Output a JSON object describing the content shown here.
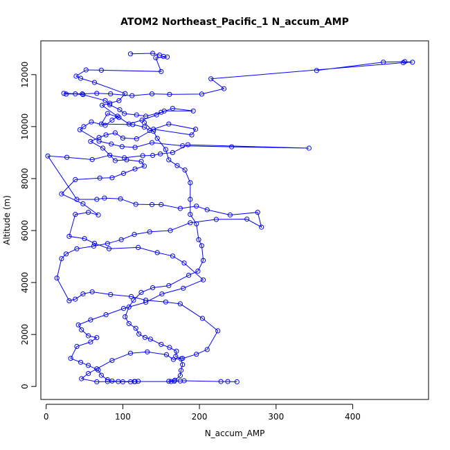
{
  "chart_data": {
    "type": "scatter",
    "title": "ATOM2 Northeast_Pacific_1 N_accum_AMP",
    "xlabel": "N_accum_AMP",
    "ylabel": "Altitude (m)",
    "xlim": [
      -7,
      499
    ],
    "ylim": [
      -500,
      13300
    ],
    "x_ticks": [
      0,
      100,
      200,
      300,
      400
    ],
    "y_ticks": [
      0,
      2000,
      4000,
      6000,
      8000,
      10000,
      12000
    ],
    "grid": false,
    "style": "points connected by lines",
    "color": "#0000ff",
    "series": [
      {
        "points": [
          [
            110,
            12800
          ],
          [
            139,
            12820
          ],
          [
            148,
            12750
          ],
          [
            153,
            12700
          ],
          [
            158,
            12680
          ],
          [
            143,
            12650
          ],
          [
            150,
            12120
          ],
          [
            72,
            12170
          ],
          [
            52,
            12180
          ],
          [
            39,
            11940
          ],
          [
            45,
            11860
          ],
          [
            63,
            11700
          ],
          [
            103,
            11270
          ],
          [
            95,
            11000
          ],
          [
            83,
            10900
          ],
          [
            73,
            10820
          ],
          [
            95,
            10350
          ],
          [
            80,
            10500
          ],
          [
            72,
            10100
          ],
          [
            113,
            10080
          ],
          [
            128,
            9980
          ],
          [
            135,
            9850
          ],
          [
            160,
            10100
          ],
          [
            195,
            9900
          ],
          [
            190,
            9680
          ],
          [
            140,
            9900
          ],
          [
            118,
            9530
          ],
          [
            100,
            9560
          ],
          [
            90,
            9760
          ],
          [
            78,
            9680
          ],
          [
            69,
            9580
          ],
          [
            58,
            9430
          ],
          [
            74,
            9170
          ],
          [
            90,
            8690
          ],
          [
            105,
            8720
          ],
          [
            124,
            8660
          ],
          [
            128,
            8480
          ],
          [
            116,
            8370
          ],
          [
            101,
            8200
          ],
          [
            86,
            8030
          ],
          [
            70,
            8020
          ],
          [
            38,
            7960
          ],
          [
            20,
            7410
          ],
          [
            48,
            7030
          ],
          [
            68,
            6600
          ],
          [
            55,
            6700
          ],
          [
            38,
            6620
          ],
          [
            30,
            5780
          ],
          [
            50,
            5690
          ],
          [
            63,
            5510
          ],
          [
            82,
            5300
          ],
          [
            120,
            5350
          ],
          [
            145,
            5150
          ],
          [
            165,
            5020
          ],
          [
            180,
            4750
          ],
          [
            205,
            4100
          ],
          [
            179,
            3780
          ],
          [
            151,
            3560
          ],
          [
            130,
            3240
          ],
          [
            101,
            3000
          ],
          [
            78,
            2760
          ],
          [
            58,
            2560
          ],
          [
            42,
            2370
          ],
          [
            46,
            2180
          ],
          [
            55,
            1950
          ],
          [
            66,
            1880
          ],
          [
            58,
            1710
          ],
          [
            40,
            1540
          ],
          [
            32,
            1080
          ],
          [
            45,
            930
          ],
          [
            55,
            810
          ],
          [
            68,
            630
          ],
          [
            72,
            430
          ],
          [
            80,
            260
          ],
          [
            86,
            210
          ],
          [
            94,
            190
          ],
          [
            100,
            180
          ],
          [
            110,
            180
          ],
          [
            115,
            190
          ],
          [
            120,
            200
          ]
        ]
      },
      {
        "points": [
          [
            353,
            12160
          ],
          [
            440,
            12480
          ],
          [
            468,
            12500
          ],
          [
            478,
            12480
          ],
          [
            466,
            12460
          ],
          [
            215,
            11840
          ],
          [
            232,
            11460
          ],
          [
            203,
            11250
          ],
          [
            161,
            11240
          ],
          [
            138,
            11260
          ],
          [
            112,
            11190
          ],
          [
            84,
            11260
          ],
          [
            66,
            11280
          ],
          [
            47,
            11260
          ],
          [
            23,
            11280
          ],
          [
            26,
            11250
          ],
          [
            38,
            11260
          ],
          [
            48,
            11230
          ],
          [
            77,
            11000
          ],
          [
            83,
            10840
          ],
          [
            96,
            10650
          ],
          [
            102,
            10500
          ],
          [
            118,
            10450
          ],
          [
            130,
            10400
          ],
          [
            150,
            10550
          ],
          [
            165,
            10700
          ],
          [
            192,
            10600
          ],
          [
            154,
            10600
          ],
          [
            144,
            10450
          ],
          [
            125,
            10250
          ],
          [
            108,
            10100
          ],
          [
            93,
            10400
          ],
          [
            86,
            10250
          ],
          [
            77,
            10050
          ],
          [
            59,
            10180
          ],
          [
            49,
            10000
          ],
          [
            44,
            9880
          ],
          [
            69,
            9440
          ],
          [
            85,
            9330
          ],
          [
            99,
            9230
          ],
          [
            116,
            9200
          ],
          [
            138,
            9380
          ],
          [
            178,
            9260
          ],
          [
            242,
            9220
          ],
          [
            343,
            9170
          ],
          [
            185,
            9300
          ],
          [
            165,
            9000
          ],
          [
            149,
            8950
          ],
          [
            139,
            8890
          ],
          [
            126,
            8880
          ],
          [
            102,
            8800
          ],
          [
            83,
            8900
          ],
          [
            60,
            8730
          ],
          [
            27,
            8820
          ],
          [
            2,
            8870
          ],
          [
            40,
            7200
          ],
          [
            66,
            7200
          ],
          [
            76,
            7250
          ],
          [
            97,
            7220
          ],
          [
            117,
            7010
          ],
          [
            138,
            7000
          ],
          [
            150,
            7000
          ],
          [
            175,
            6850
          ],
          [
            196,
            6940
          ],
          [
            210,
            6800
          ],
          [
            240,
            6600
          ],
          [
            276,
            6700
          ],
          [
            281,
            6130
          ],
          [
            262,
            6440
          ],
          [
            222,
            6430
          ],
          [
            188,
            6300
          ],
          [
            162,
            6000
          ],
          [
            135,
            5950
          ],
          [
            115,
            5850
          ],
          [
            98,
            5650
          ],
          [
            80,
            5500
          ],
          [
            62,
            5400
          ],
          [
            40,
            5300
          ],
          [
            26,
            5100
          ],
          [
            20,
            4920
          ],
          [
            14,
            4170
          ],
          [
            30,
            3300
          ],
          [
            38,
            3360
          ],
          [
            48,
            3560
          ],
          [
            60,
            3640
          ],
          [
            84,
            3540
          ],
          [
            111,
            3460
          ],
          [
            130,
            3320
          ],
          [
            156,
            3250
          ],
          [
            175,
            3180
          ],
          [
            204,
            2620
          ],
          [
            224,
            2140
          ],
          [
            210,
            1420
          ],
          [
            196,
            1240
          ],
          [
            178,
            1080
          ],
          [
            166,
            1040
          ],
          [
            157,
            1220
          ],
          [
            132,
            1330
          ],
          [
            110,
            1280
          ],
          [
            86,
            1000
          ],
          [
            66,
            680
          ],
          [
            55,
            500
          ],
          [
            46,
            300
          ],
          [
            66,
            180
          ],
          [
            80,
            190
          ],
          [
            116,
            190
          ],
          [
            163,
            190
          ],
          [
            167,
            200
          ],
          [
            175,
            210
          ],
          [
            180,
            220
          ],
          [
            228,
            190
          ],
          [
            237,
            190
          ],
          [
            249,
            180
          ]
        ]
      },
      {
        "points": [
          [
            128,
            10150
          ],
          [
            140,
            9820
          ],
          [
            145,
            9550
          ],
          [
            156,
            9120
          ],
          [
            160,
            8720
          ],
          [
            171,
            8500
          ],
          [
            181,
            8330
          ],
          [
            188,
            7840
          ],
          [
            188,
            7200
          ],
          [
            188,
            6620
          ],
          [
            196,
            6260
          ],
          [
            199,
            5650
          ],
          [
            203,
            5420
          ],
          [
            205,
            4850
          ],
          [
            198,
            4440
          ],
          [
            186,
            4280
          ],
          [
            160,
            3880
          ],
          [
            139,
            3800
          ],
          [
            124,
            3620
          ],
          [
            114,
            3320
          ],
          [
            108,
            3060
          ],
          [
            103,
            2680
          ],
          [
            108,
            2420
          ],
          [
            117,
            2240
          ],
          [
            121,
            2020
          ],
          [
            129,
            1890
          ],
          [
            136,
            1820
          ],
          [
            150,
            1620
          ],
          [
            161,
            1500
          ],
          [
            170,
            1360
          ],
          [
            169,
            1160
          ],
          [
            176,
            1060
          ],
          [
            178,
            840
          ],
          [
            176,
            620
          ],
          [
            175,
            420
          ],
          [
            168,
            240
          ],
          [
            160,
            200
          ]
        ]
      }
    ]
  }
}
